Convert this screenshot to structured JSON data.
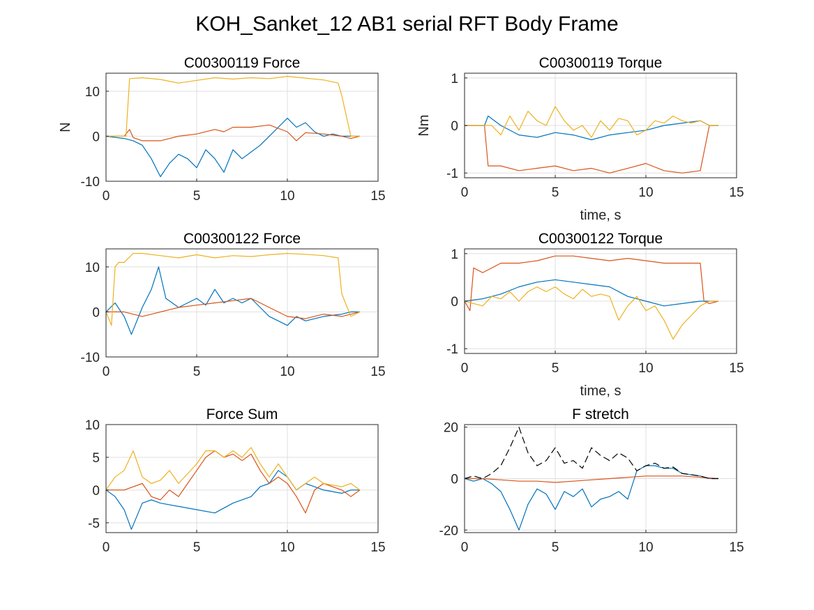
{
  "figure": {
    "title": "KOH_Sanket_12 AB1 serial RFT Body Frame"
  },
  "colors": {
    "blue": "#0072BD",
    "red": "#D95319",
    "yellow": "#EDB120",
    "black": "#000000",
    "grid": "#dfdfdf",
    "axis": "#262626"
  },
  "chart_data": [
    {
      "type": "line",
      "title": "C00300119 Force",
      "xlabel": "",
      "ylabel": "N",
      "xlim": [
        0,
        15
      ],
      "ylim": [
        -10,
        14
      ],
      "xticks": [
        0,
        5,
        10,
        15
      ],
      "yticks": [
        -10,
        0,
        10
      ],
      "grid": true,
      "series": [
        {
          "color": "blue",
          "x": [
            0,
            1,
            1.5,
            2,
            2.5,
            3,
            3.5,
            4,
            4.5,
            5,
            5.5,
            6,
            6.5,
            7,
            7.5,
            8,
            8.5,
            9,
            9.5,
            10,
            10.5,
            11,
            11.5,
            12,
            12.5,
            13,
            13.5,
            14
          ],
          "y": [
            0,
            -0.5,
            -1,
            -2,
            -5,
            -9,
            -6,
            -4,
            -5,
            -7,
            -3,
            -5,
            -8,
            -3,
            -5,
            -3.5,
            -2,
            0,
            2,
            4,
            2,
            3,
            1,
            0,
            0.5,
            0,
            0,
            0
          ]
        },
        {
          "color": "red",
          "x": [
            0,
            1,
            1.3,
            1.5,
            2,
            3,
            4,
            5,
            6,
            6.5,
            7,
            8,
            9,
            10,
            10.5,
            11,
            12,
            13,
            13.5,
            14
          ],
          "y": [
            0,
            0,
            1.5,
            -0.3,
            -1,
            -1,
            0,
            0.5,
            1.5,
            1,
            2,
            2,
            2.5,
            1,
            -1,
            0.8,
            0.5,
            0,
            -0.5,
            0
          ]
        },
        {
          "color": "yellow",
          "x": [
            0,
            1.1,
            1.3,
            2,
            3,
            4,
            5,
            6,
            7,
            8,
            9,
            10,
            11,
            12,
            12.8,
            13,
            13.5,
            14
          ],
          "y": [
            0,
            0,
            12.8,
            13,
            12.6,
            11.8,
            12.4,
            13,
            12.7,
            13,
            12.8,
            13.3,
            12.9,
            12.5,
            11.8,
            9,
            0,
            0
          ]
        }
      ]
    },
    {
      "type": "line",
      "title": "C00300119 Torque",
      "xlabel": "time, s",
      "ylabel": "Nm",
      "xlim": [
        0,
        15
      ],
      "ylim": [
        -1.1,
        1.1
      ],
      "xticks": [
        0,
        5,
        10,
        15
      ],
      "yticks": [
        -1,
        0,
        1
      ],
      "grid": true,
      "series": [
        {
          "color": "blue",
          "x": [
            0,
            1.1,
            1.3,
            2,
            3,
            4,
            5,
            6,
            7,
            8,
            9,
            10,
            11,
            12,
            13,
            13.5,
            14
          ],
          "y": [
            0,
            0,
            0.2,
            0,
            -0.2,
            -0.25,
            -0.15,
            -0.2,
            -0.3,
            -0.2,
            -0.15,
            -0.1,
            0,
            0.05,
            0.1,
            0,
            0
          ]
        },
        {
          "color": "red",
          "x": [
            0,
            1.1,
            1.3,
            2,
            3,
            4,
            5,
            6,
            7,
            8,
            9,
            10,
            11,
            12,
            13,
            13.5,
            14
          ],
          "y": [
            0,
            0,
            -0.85,
            -0.85,
            -0.95,
            -0.9,
            -0.85,
            -0.95,
            -0.9,
            -1,
            -0.9,
            -0.8,
            -0.95,
            -1,
            -0.95,
            0,
            0
          ]
        },
        {
          "color": "yellow",
          "x": [
            0,
            1,
            1.5,
            2,
            2.5,
            3,
            3.5,
            4,
            4.5,
            5,
            5.5,
            6,
            6.5,
            7,
            7.5,
            8,
            8.5,
            9,
            9.5,
            10,
            10.5,
            11,
            11.5,
            12,
            12.5,
            13,
            13.5,
            14
          ],
          "y": [
            0,
            0,
            0,
            -0.2,
            0.2,
            -0.1,
            0.3,
            0.1,
            0,
            0.4,
            0.1,
            -0.1,
            0,
            -0.25,
            0.1,
            -0.1,
            0.15,
            0.1,
            -0.2,
            -0.1,
            0.1,
            0.05,
            0.2,
            0.1,
            0.05,
            0.1,
            0,
            0
          ]
        }
      ]
    },
    {
      "type": "line",
      "title": "C00300122 Force",
      "xlabel": "",
      "ylabel": "",
      "xlim": [
        0,
        15
      ],
      "ylim": [
        -10,
        14
      ],
      "xticks": [
        0,
        5,
        10,
        15
      ],
      "yticks": [
        -10,
        0,
        10
      ],
      "grid": true,
      "series": [
        {
          "color": "blue",
          "x": [
            0,
            0.5,
            1,
            1.4,
            2,
            2.5,
            2.9,
            3.3,
            4,
            4.5,
            5,
            5.5,
            6,
            6.5,
            7,
            7.5,
            8,
            8.5,
            9,
            9.5,
            10,
            10.5,
            11,
            12,
            13,
            13.5,
            14
          ],
          "y": [
            0,
            2,
            -1,
            -5,
            1,
            5,
            10,
            3,
            1,
            2,
            3,
            1.5,
            5,
            2,
            3,
            2,
            3,
            1,
            -1,
            -2,
            -3,
            -1,
            -2,
            -1,
            -0.5,
            0,
            0
          ]
        },
        {
          "color": "red",
          "x": [
            0,
            1,
            2,
            3,
            4,
            5,
            6,
            7,
            8,
            9,
            10,
            11,
            12,
            13,
            14
          ],
          "y": [
            0,
            0,
            -1,
            0,
            1,
            1.5,
            2,
            2.5,
            3,
            1,
            -1,
            -1.5,
            -0.5,
            -1,
            0
          ]
        },
        {
          "color": "yellow",
          "x": [
            0,
            0.3,
            0.5,
            0.7,
            1,
            1.5,
            2,
            3,
            4,
            5,
            6,
            7,
            8,
            9,
            10,
            11,
            12,
            12.8,
            13,
            13.5,
            14
          ],
          "y": [
            0,
            -3,
            10,
            11,
            11,
            13,
            13,
            12.5,
            12,
            12.7,
            12,
            12.5,
            12.3,
            12.7,
            13,
            12.8,
            12.5,
            12,
            4,
            -1,
            0
          ]
        }
      ]
    },
    {
      "type": "line",
      "title": "C00300122 Torque",
      "xlabel": "time, s",
      "ylabel": "",
      "xlim": [
        0,
        15
      ],
      "ylim": [
        -1.1,
        1.1
      ],
      "xticks": [
        0,
        5,
        10,
        15
      ],
      "yticks": [
        -1,
        0,
        1
      ],
      "grid": true,
      "series": [
        {
          "color": "blue",
          "x": [
            0,
            1,
            2,
            3,
            4,
            5,
            6,
            7,
            8,
            9,
            10,
            11,
            12,
            13,
            14
          ],
          "y": [
            0,
            0.05,
            0.15,
            0.3,
            0.4,
            0.45,
            0.4,
            0.35,
            0.3,
            0.1,
            0,
            -0.1,
            -0.05,
            0,
            0
          ]
        },
        {
          "color": "red",
          "x": [
            0,
            0.3,
            0.5,
            1,
            2,
            3,
            4,
            5,
            6,
            7,
            8,
            9,
            10,
            11,
            12,
            13,
            13.2,
            13.5,
            14
          ],
          "y": [
            0,
            -0.2,
            0.7,
            0.6,
            0.8,
            0.8,
            0.85,
            0.95,
            0.95,
            0.9,
            0.85,
            0.9,
            0.85,
            0.8,
            0.8,
            0.8,
            0,
            -0.05,
            0
          ]
        },
        {
          "color": "yellow",
          "x": [
            0,
            1,
            1.5,
            2,
            2.5,
            3,
            3.5,
            4,
            4.5,
            5,
            5.5,
            6,
            6.5,
            7,
            7.5,
            8,
            8.5,
            9,
            9.5,
            10,
            10.5,
            11,
            11.5,
            12,
            12.5,
            13,
            13.5,
            14
          ],
          "y": [
            0,
            -0.1,
            0.1,
            0.05,
            0.2,
            0,
            0.2,
            0.3,
            0.2,
            0.3,
            0.15,
            0.05,
            0.25,
            0.1,
            0.15,
            0.1,
            -0.4,
            -0.1,
            0.1,
            -0.2,
            -0.1,
            -0.4,
            -0.8,
            -0.5,
            -0.3,
            -0.1,
            0,
            0
          ]
        }
      ]
    },
    {
      "type": "line",
      "title": "Force Sum",
      "xlabel": "",
      "ylabel": "",
      "xlim": [
        0,
        15
      ],
      "ylim": [
        -6.5,
        10
      ],
      "xticks": [
        0,
        5,
        10,
        15
      ],
      "yticks": [
        -5,
        0,
        5,
        10
      ],
      "grid": true,
      "series": [
        {
          "color": "blue",
          "x": [
            0,
            0.5,
            1,
            1.4,
            2,
            2.5,
            3,
            4,
            5,
            6,
            7,
            8,
            8.5,
            9,
            9.5,
            10,
            10.5,
            11,
            11.5,
            12,
            13,
            13.5,
            14
          ],
          "y": [
            0,
            -1,
            -3,
            -6,
            -2,
            -1.5,
            -2,
            -2.5,
            -3,
            -3.5,
            -2,
            -1,
            0.5,
            1,
            3,
            2,
            0,
            1,
            0.5,
            0,
            -0.5,
            0,
            0
          ]
        },
        {
          "color": "red",
          "x": [
            0,
            1,
            2,
            2.5,
            3,
            3.5,
            4,
            4.5,
            5,
            5.5,
            6,
            6.5,
            7,
            7.5,
            8,
            8.5,
            9,
            9.5,
            10,
            10.5,
            11,
            11.5,
            12,
            13,
            13.5,
            14
          ],
          "y": [
            0,
            0,
            1,
            -1,
            -1.5,
            0,
            -1,
            1,
            3,
            5,
            6,
            5,
            5.5,
            4.5,
            5.5,
            3,
            1,
            2,
            1,
            -1,
            -3.5,
            0,
            1,
            0,
            -1,
            0
          ]
        },
        {
          "color": "yellow",
          "x": [
            0,
            0.5,
            1,
            1.5,
            2,
            2.5,
            3,
            3.5,
            4,
            4.5,
            5,
            5.5,
            6,
            6.5,
            7,
            7.5,
            8,
            8.5,
            9,
            9.5,
            10,
            10.5,
            11,
            11.5,
            12,
            13,
            13.5,
            14
          ],
          "y": [
            0,
            2,
            3,
            6,
            2,
            1,
            1.5,
            3,
            1,
            2.5,
            4,
            6,
            6,
            5,
            6,
            5,
            6.5,
            4,
            2,
            4,
            2,
            0,
            1,
            2,
            1,
            0.5,
            1,
            0
          ]
        }
      ]
    },
    {
      "type": "line",
      "title": "F stretch",
      "xlabel": "",
      "ylabel": "",
      "xlim": [
        0,
        15
      ],
      "ylim": [
        -21,
        21
      ],
      "xticks": [
        0,
        5,
        10,
        15
      ],
      "yticks": [
        -20,
        0,
        20
      ],
      "grid": true,
      "series": [
        {
          "color": "blue",
          "x": [
            0,
            0.5,
            1,
            1.5,
            2,
            2.5,
            3,
            3.5,
            4,
            4.5,
            5,
            5.5,
            6,
            6.5,
            7,
            7.5,
            8,
            8.5,
            9,
            9.5,
            10,
            10.5,
            11,
            11.5,
            12,
            13,
            13.5,
            14
          ],
          "y": [
            0,
            -1,
            0,
            -2,
            -5,
            -12,
            -20,
            -10,
            -4,
            -6,
            -12,
            -5,
            -7,
            -4,
            -11,
            -8,
            -7,
            -5,
            -8,
            3,
            5,
            5,
            4,
            4,
            2,
            1,
            0,
            0
          ]
        },
        {
          "color": "red",
          "x": [
            0,
            1,
            2,
            3,
            4,
            5,
            6,
            7,
            8,
            9,
            10,
            11,
            12,
            13,
            14
          ],
          "y": [
            0,
            0,
            -0.5,
            -1,
            -1,
            -1.5,
            -1,
            -0.5,
            0,
            0.5,
            1,
            1,
            1,
            0.5,
            0
          ]
        },
        {
          "color": "black",
          "dashed": true,
          "x": [
            0,
            0.5,
            1,
            1.5,
            2,
            2.5,
            3,
            3.5,
            4,
            4.5,
            5,
            5.5,
            6,
            6.5,
            7,
            7.5,
            8,
            8.5,
            9,
            9.5,
            10,
            10.5,
            11,
            11.5,
            12,
            13,
            13.5,
            14
          ],
          "y": [
            0,
            1,
            0,
            2,
            5,
            12,
            20,
            10,
            5,
            7,
            12,
            6,
            7,
            4,
            12,
            9,
            7,
            10,
            8,
            3,
            5,
            6,
            4,
            4.5,
            2,
            1,
            0,
            0
          ]
        }
      ]
    }
  ]
}
